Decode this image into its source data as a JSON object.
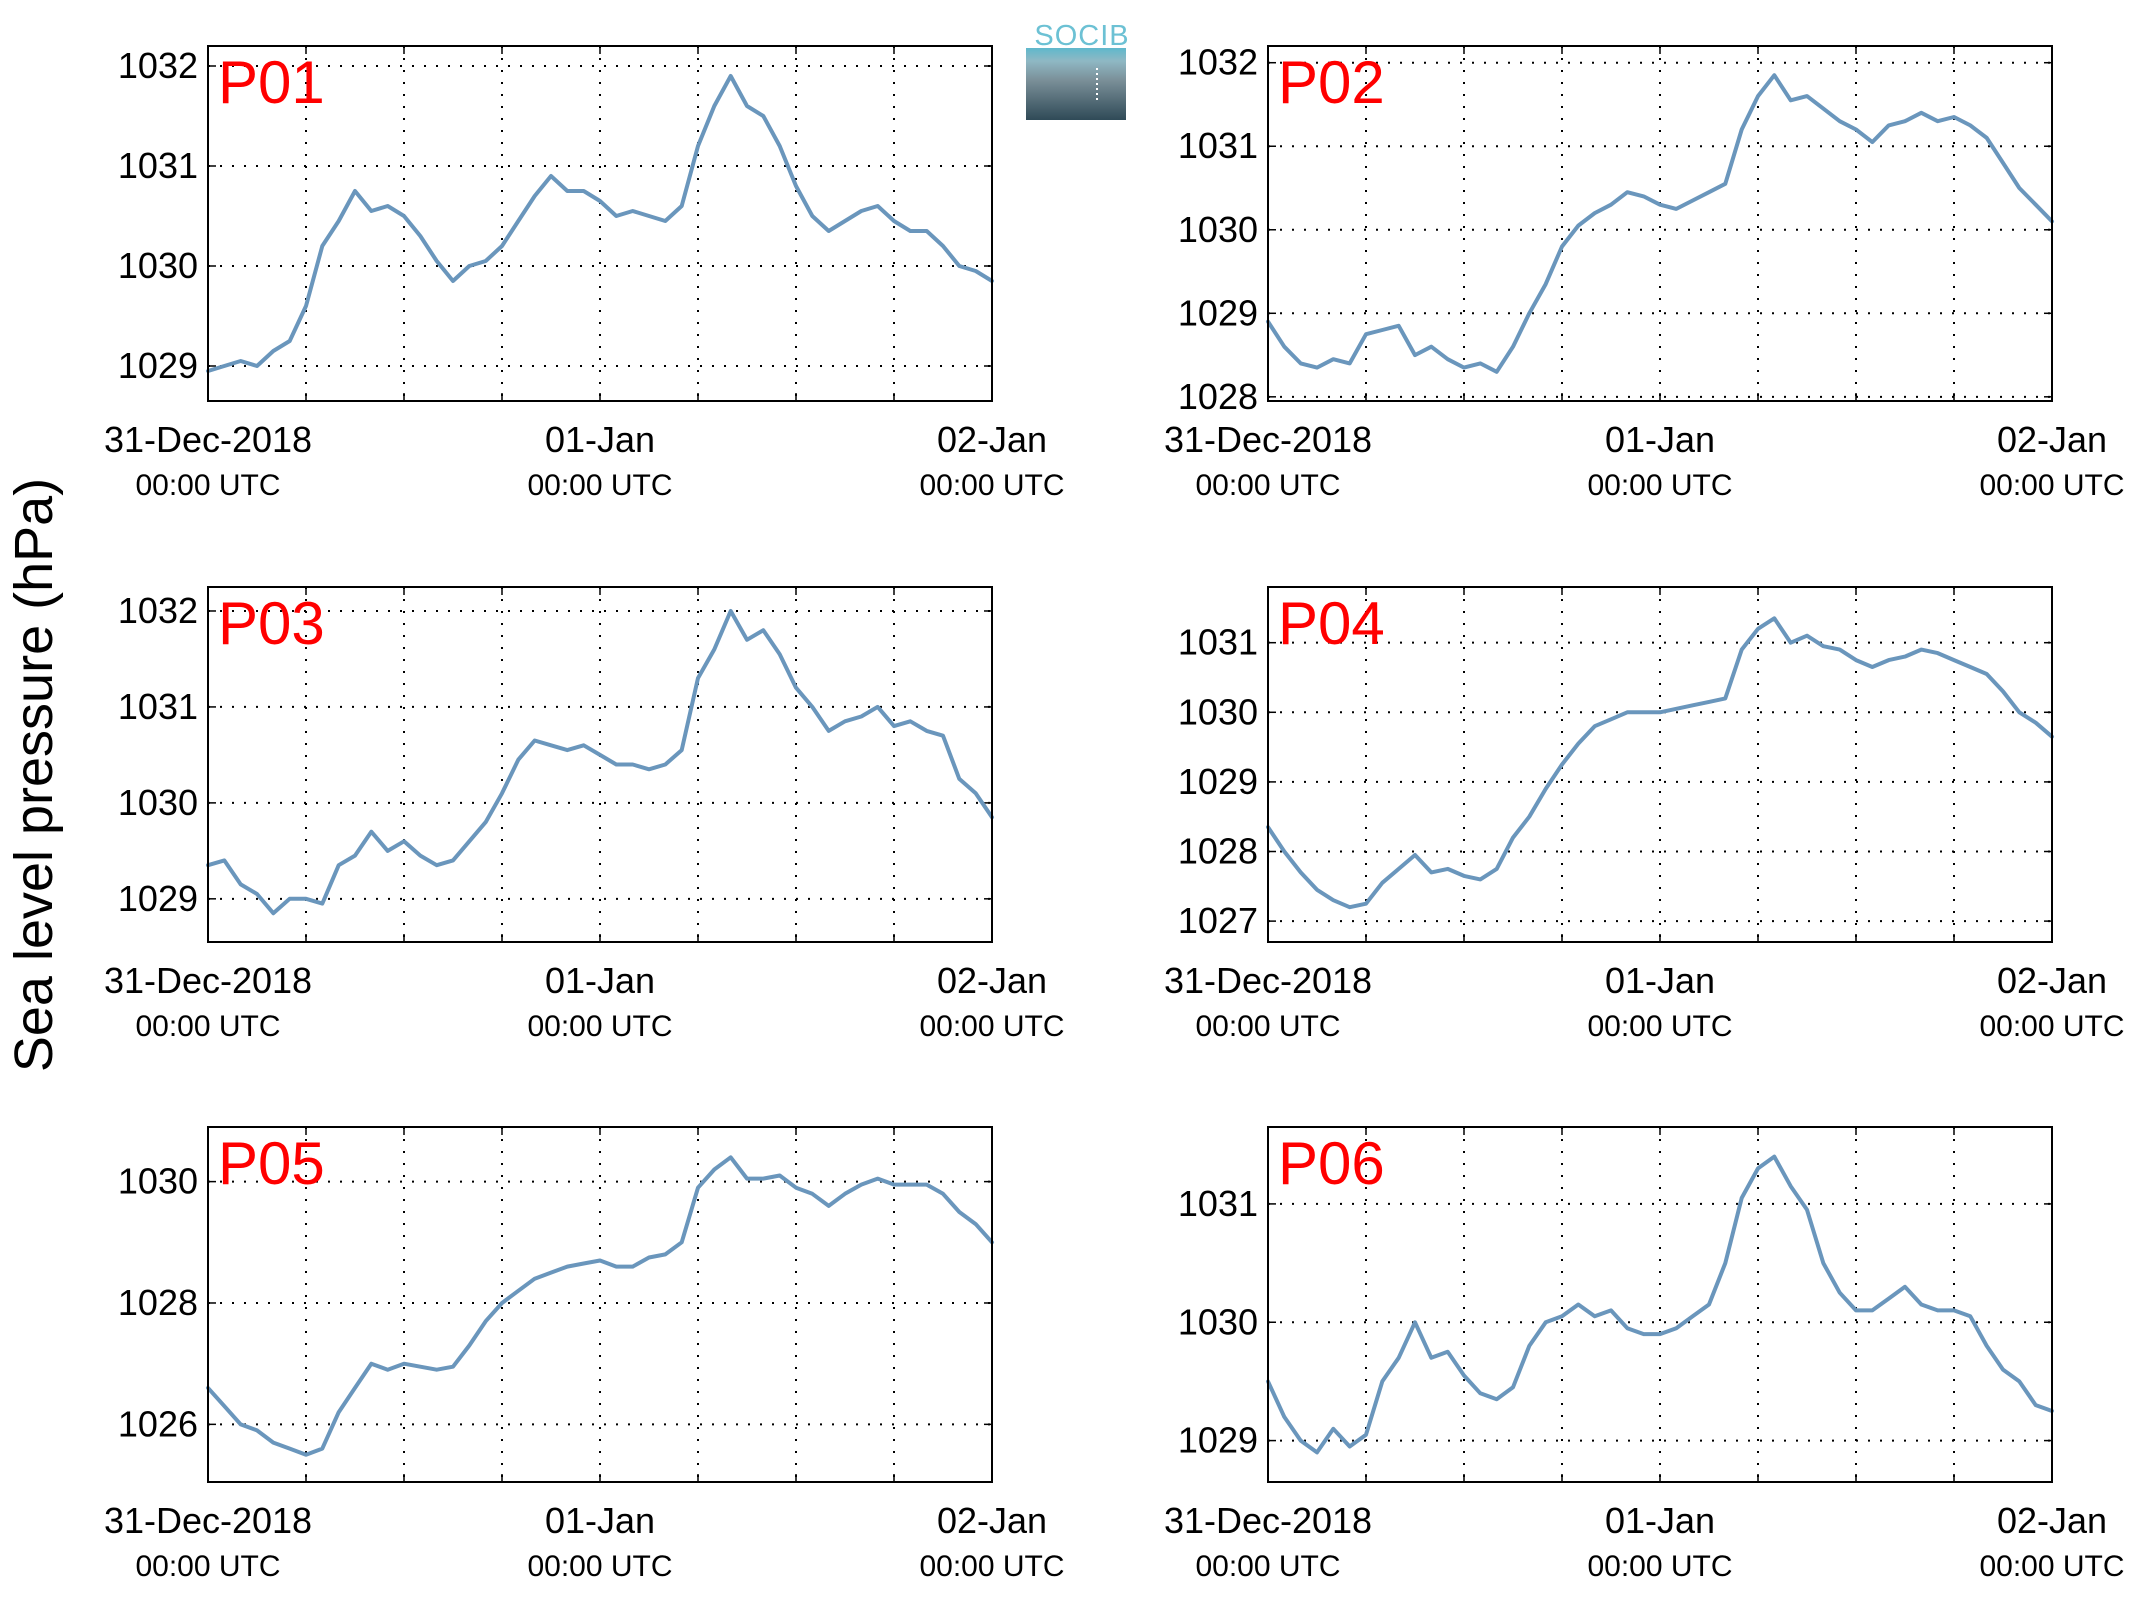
{
  "ylabel": "Sea level pressure (hPa)",
  "logo": {
    "text": "SOCIB",
    "color": "#6cc1d4",
    "top_color": "#5fb8cc",
    "bottom_color": "#2f4a57"
  },
  "colors": {
    "line": "#6a96bc",
    "label": "#ff0000",
    "grid": "#000000"
  },
  "x_axis": {
    "domain": [
      "2018-12-31 00:00 UTC",
      "2019-01-02 00:00 UTC"
    ],
    "tick_labels": [
      {
        "date": "31-Dec-2018",
        "time": "00:00 UTC"
      },
      {
        "date": "01-Jan",
        "time": "00:00 UTC"
      },
      {
        "date": "02-Jan",
        "time": "00:00 UTC"
      }
    ]
  },
  "chart_data": [
    {
      "type": "line",
      "label": "P01",
      "ylim": [
        1028.65,
        1032.2
      ],
      "yticks": [
        1029,
        1030,
        1031,
        1032
      ],
      "x": [
        "2018-12-31 00:00",
        "2018-12-31 01:00",
        "2018-12-31 02:00",
        "2018-12-31 03:00",
        "2018-12-31 04:00",
        "2018-12-31 05:00",
        "2018-12-31 06:00",
        "2018-12-31 07:00",
        "2018-12-31 08:00",
        "2018-12-31 09:00",
        "2018-12-31 10:00",
        "2018-12-31 11:00",
        "2018-12-31 12:00",
        "2018-12-31 13:00",
        "2018-12-31 14:00",
        "2018-12-31 15:00",
        "2018-12-31 16:00",
        "2018-12-31 17:00",
        "2018-12-31 18:00",
        "2018-12-31 19:00",
        "2018-12-31 20:00",
        "2018-12-31 21:00",
        "2018-12-31 22:00",
        "2018-12-31 23:00",
        "2019-01-01 00:00",
        "2019-01-01 01:00",
        "2019-01-01 02:00",
        "2019-01-01 03:00",
        "2019-01-01 04:00",
        "2019-01-01 05:00",
        "2019-01-01 06:00",
        "2019-01-01 07:00",
        "2019-01-01 08:00",
        "2019-01-01 09:00",
        "2019-01-01 10:00",
        "2019-01-01 11:00",
        "2019-01-01 12:00",
        "2019-01-01 13:00",
        "2019-01-01 14:00",
        "2019-01-01 15:00",
        "2019-01-01 16:00",
        "2019-01-01 17:00",
        "2019-01-01 18:00",
        "2019-01-01 19:00",
        "2019-01-01 20:00",
        "2019-01-01 21:00",
        "2019-01-01 22:00",
        "2019-01-01 23:00",
        "2019-01-02 00:00"
      ],
      "values": [
        1028.95,
        1029.0,
        1029.05,
        1029.0,
        1029.15,
        1029.25,
        1029.6,
        1030.2,
        1030.45,
        1030.75,
        1030.55,
        1030.6,
        1030.5,
        1030.3,
        1030.05,
        1029.85,
        1030.0,
        1030.05,
        1030.2,
        1030.45,
        1030.7,
        1030.9,
        1030.75,
        1030.75,
        1030.65,
        1030.5,
        1030.55,
        1030.5,
        1030.45,
        1030.6,
        1031.2,
        1031.6,
        1031.9,
        1031.6,
        1031.5,
        1031.2,
        1030.8,
        1030.5,
        1030.35,
        1030.45,
        1030.55,
        1030.6,
        1030.45,
        1030.35,
        1030.35,
        1030.2,
        1030.0,
        1029.95,
        1029.85
      ]
    },
    {
      "type": "line",
      "label": "P02",
      "ylim": [
        1027.95,
        1032.2
      ],
      "yticks": [
        1028,
        1029,
        1030,
        1031,
        1032
      ],
      "x": [
        "2018-12-31 00:00",
        "2018-12-31 01:00",
        "2018-12-31 02:00",
        "2018-12-31 03:00",
        "2018-12-31 04:00",
        "2018-12-31 05:00",
        "2018-12-31 06:00",
        "2018-12-31 07:00",
        "2018-12-31 08:00",
        "2018-12-31 09:00",
        "2018-12-31 10:00",
        "2018-12-31 11:00",
        "2018-12-31 12:00",
        "2018-12-31 13:00",
        "2018-12-31 14:00",
        "2018-12-31 15:00",
        "2018-12-31 16:00",
        "2018-12-31 17:00",
        "2018-12-31 18:00",
        "2018-12-31 19:00",
        "2018-12-31 20:00",
        "2018-12-31 21:00",
        "2018-12-31 22:00",
        "2018-12-31 23:00",
        "2019-01-01 00:00",
        "2019-01-01 01:00",
        "2019-01-01 02:00",
        "2019-01-01 03:00",
        "2019-01-01 04:00",
        "2019-01-01 05:00",
        "2019-01-01 06:00",
        "2019-01-01 07:00",
        "2019-01-01 08:00",
        "2019-01-01 09:00",
        "2019-01-01 10:00",
        "2019-01-01 11:00",
        "2019-01-01 12:00",
        "2019-01-01 13:00",
        "2019-01-01 14:00",
        "2019-01-01 15:00",
        "2019-01-01 16:00",
        "2019-01-01 17:00",
        "2019-01-01 18:00",
        "2019-01-01 19:00",
        "2019-01-01 20:00",
        "2019-01-01 21:00",
        "2019-01-01 22:00",
        "2019-01-01 23:00",
        "2019-01-02 00:00"
      ],
      "values": [
        1028.9,
        1028.6,
        1028.4,
        1028.35,
        1028.45,
        1028.4,
        1028.75,
        1028.8,
        1028.85,
        1028.5,
        1028.6,
        1028.45,
        1028.35,
        1028.4,
        1028.3,
        1028.6,
        1029.0,
        1029.35,
        1029.8,
        1030.05,
        1030.2,
        1030.3,
        1030.45,
        1030.4,
        1030.3,
        1030.25,
        1030.35,
        1030.45,
        1030.55,
        1031.2,
        1031.6,
        1031.85,
        1031.55,
        1031.6,
        1031.45,
        1031.3,
        1031.2,
        1031.05,
        1031.25,
        1031.3,
        1031.4,
        1031.3,
        1031.35,
        1031.25,
        1031.1,
        1030.8,
        1030.5,
        1030.3,
        1030.1
      ]
    },
    {
      "type": "line",
      "label": "P03",
      "ylim": [
        1028.55,
        1032.25
      ],
      "yticks": [
        1029,
        1030,
        1031,
        1032
      ],
      "x": [
        "2018-12-31 00:00",
        "2018-12-31 01:00",
        "2018-12-31 02:00",
        "2018-12-31 03:00",
        "2018-12-31 04:00",
        "2018-12-31 05:00",
        "2018-12-31 06:00",
        "2018-12-31 07:00",
        "2018-12-31 08:00",
        "2018-12-31 09:00",
        "2018-12-31 10:00",
        "2018-12-31 11:00",
        "2018-12-31 12:00",
        "2018-12-31 13:00",
        "2018-12-31 14:00",
        "2018-12-31 15:00",
        "2018-12-31 16:00",
        "2018-12-31 17:00",
        "2018-12-31 18:00",
        "2018-12-31 19:00",
        "2018-12-31 20:00",
        "2018-12-31 21:00",
        "2018-12-31 22:00",
        "2018-12-31 23:00",
        "2019-01-01 00:00",
        "2019-01-01 01:00",
        "2019-01-01 02:00",
        "2019-01-01 03:00",
        "2019-01-01 04:00",
        "2019-01-01 05:00",
        "2019-01-01 06:00",
        "2019-01-01 07:00",
        "2019-01-01 08:00",
        "2019-01-01 09:00",
        "2019-01-01 10:00",
        "2019-01-01 11:00",
        "2019-01-01 12:00",
        "2019-01-01 13:00",
        "2019-01-01 14:00",
        "2019-01-01 15:00",
        "2019-01-01 16:00",
        "2019-01-01 17:00",
        "2019-01-01 18:00",
        "2019-01-01 19:00",
        "2019-01-01 20:00",
        "2019-01-01 21:00",
        "2019-01-01 22:00",
        "2019-01-01 23:00",
        "2019-01-02 00:00"
      ],
      "values": [
        1029.35,
        1029.4,
        1029.15,
        1029.05,
        1028.85,
        1029.0,
        1029.0,
        1028.95,
        1029.35,
        1029.45,
        1029.7,
        1029.5,
        1029.6,
        1029.45,
        1029.35,
        1029.4,
        1029.6,
        1029.8,
        1030.1,
        1030.45,
        1030.65,
        1030.6,
        1030.55,
        1030.6,
        1030.5,
        1030.4,
        1030.4,
        1030.35,
        1030.4,
        1030.55,
        1031.3,
        1031.6,
        1032.0,
        1031.7,
        1031.8,
        1031.55,
        1031.2,
        1031.0,
        1030.75,
        1030.85,
        1030.9,
        1031.0,
        1030.8,
        1030.85,
        1030.75,
        1030.7,
        1030.25,
        1030.1,
        1029.85
      ]
    },
    {
      "type": "line",
      "label": "P04",
      "ylim": [
        1026.7,
        1031.8
      ],
      "yticks": [
        1027,
        1028,
        1029,
        1030,
        1031
      ],
      "x": [
        "2018-12-31 00:00",
        "2018-12-31 01:00",
        "2018-12-31 02:00",
        "2018-12-31 03:00",
        "2018-12-31 04:00",
        "2018-12-31 05:00",
        "2018-12-31 06:00",
        "2018-12-31 07:00",
        "2018-12-31 08:00",
        "2018-12-31 09:00",
        "2018-12-31 10:00",
        "2018-12-31 11:00",
        "2018-12-31 12:00",
        "2018-12-31 13:00",
        "2018-12-31 14:00",
        "2018-12-31 15:00",
        "2018-12-31 16:00",
        "2018-12-31 17:00",
        "2018-12-31 18:00",
        "2018-12-31 19:00",
        "2018-12-31 20:00",
        "2018-12-31 21:00",
        "2018-12-31 22:00",
        "2018-12-31 23:00",
        "2019-01-01 00:00",
        "2019-01-01 01:00",
        "2019-01-01 02:00",
        "2019-01-01 03:00",
        "2019-01-01 04:00",
        "2019-01-01 05:00",
        "2019-01-01 06:00",
        "2019-01-01 07:00",
        "2019-01-01 08:00",
        "2019-01-01 09:00",
        "2019-01-01 10:00",
        "2019-01-01 11:00",
        "2019-01-01 12:00",
        "2019-01-01 13:00",
        "2019-01-01 14:00",
        "2019-01-01 15:00",
        "2019-01-01 16:00",
        "2019-01-01 17:00",
        "2019-01-01 18:00",
        "2019-01-01 19:00",
        "2019-01-01 20:00",
        "2019-01-01 21:00",
        "2019-01-01 22:00",
        "2019-01-01 23:00",
        "2019-01-02 00:00"
      ],
      "values": [
        1028.35,
        1028.0,
        1027.7,
        1027.45,
        1027.3,
        1027.2,
        1027.25,
        1027.55,
        1027.75,
        1027.95,
        1027.7,
        1027.75,
        1027.65,
        1027.6,
        1027.75,
        1028.2,
        1028.5,
        1028.9,
        1029.25,
        1029.55,
        1029.8,
        1029.9,
        1030.0,
        1030.0,
        1030.0,
        1030.05,
        1030.1,
        1030.15,
        1030.2,
        1030.9,
        1031.2,
        1031.35,
        1031.0,
        1031.1,
        1030.95,
        1030.9,
        1030.75,
        1030.65,
        1030.75,
        1030.8,
        1030.9,
        1030.85,
        1030.75,
        1030.65,
        1030.55,
        1030.3,
        1030.0,
        1029.85,
        1029.65
      ]
    },
    {
      "type": "line",
      "label": "P05",
      "ylim": [
        1025.05,
        1030.9
      ],
      "yticks": [
        1026,
        1028,
        1030
      ],
      "x": [
        "2018-12-31 00:00",
        "2018-12-31 01:00",
        "2018-12-31 02:00",
        "2018-12-31 03:00",
        "2018-12-31 04:00",
        "2018-12-31 05:00",
        "2018-12-31 06:00",
        "2018-12-31 07:00",
        "2018-12-31 08:00",
        "2018-12-31 09:00",
        "2018-12-31 10:00",
        "2018-12-31 11:00",
        "2018-12-31 12:00",
        "2018-12-31 13:00",
        "2018-12-31 14:00",
        "2018-12-31 15:00",
        "2018-12-31 16:00",
        "2018-12-31 17:00",
        "2018-12-31 18:00",
        "2018-12-31 19:00",
        "2018-12-31 20:00",
        "2018-12-31 21:00",
        "2018-12-31 22:00",
        "2018-12-31 23:00",
        "2019-01-01 00:00",
        "2019-01-01 01:00",
        "2019-01-01 02:00",
        "2019-01-01 03:00",
        "2019-01-01 04:00",
        "2019-01-01 05:00",
        "2019-01-01 06:00",
        "2019-01-01 07:00",
        "2019-01-01 08:00",
        "2019-01-01 09:00",
        "2019-01-01 10:00",
        "2019-01-01 11:00",
        "2019-01-01 12:00",
        "2019-01-01 13:00",
        "2019-01-01 14:00",
        "2019-01-01 15:00",
        "2019-01-01 16:00",
        "2019-01-01 17:00",
        "2019-01-01 18:00",
        "2019-01-01 19:00",
        "2019-01-01 20:00",
        "2019-01-01 21:00",
        "2019-01-01 22:00",
        "2019-01-01 23:00",
        "2019-01-02 00:00"
      ],
      "values": [
        1026.6,
        1026.3,
        1026.0,
        1025.9,
        1025.7,
        1025.6,
        1025.5,
        1025.6,
        1026.2,
        1026.6,
        1027.0,
        1026.9,
        1027.0,
        1026.95,
        1026.9,
        1026.95,
        1027.3,
        1027.7,
        1028.0,
        1028.2,
        1028.4,
        1028.5,
        1028.6,
        1028.65,
        1028.7,
        1028.6,
        1028.6,
        1028.75,
        1028.8,
        1029.0,
        1029.9,
        1030.2,
        1030.4,
        1030.05,
        1030.05,
        1030.1,
        1029.9,
        1029.8,
        1029.6,
        1029.8,
        1029.95,
        1030.05,
        1029.95,
        1029.95,
        1029.95,
        1029.8,
        1029.5,
        1029.3,
        1029.0
      ]
    },
    {
      "type": "line",
      "label": "P06",
      "ylim": [
        1028.65,
        1031.65
      ],
      "yticks": [
        1029,
        1030,
        1031
      ],
      "x": [
        "2018-12-31 00:00",
        "2018-12-31 01:00",
        "2018-12-31 02:00",
        "2018-12-31 03:00",
        "2018-12-31 04:00",
        "2018-12-31 05:00",
        "2018-12-31 06:00",
        "2018-12-31 07:00",
        "2018-12-31 08:00",
        "2018-12-31 09:00",
        "2018-12-31 10:00",
        "2018-12-31 11:00",
        "2018-12-31 12:00",
        "2018-12-31 13:00",
        "2018-12-31 14:00",
        "2018-12-31 15:00",
        "2018-12-31 16:00",
        "2018-12-31 17:00",
        "2018-12-31 18:00",
        "2018-12-31 19:00",
        "2018-12-31 20:00",
        "2018-12-31 21:00",
        "2018-12-31 22:00",
        "2018-12-31 23:00",
        "2019-01-01 00:00",
        "2019-01-01 01:00",
        "2019-01-01 02:00",
        "2019-01-01 03:00",
        "2019-01-01 04:00",
        "2019-01-01 05:00",
        "2019-01-01 06:00",
        "2019-01-01 07:00",
        "2019-01-01 08:00",
        "2019-01-01 09:00",
        "2019-01-01 10:00",
        "2019-01-01 11:00",
        "2019-01-01 12:00",
        "2019-01-01 13:00",
        "2019-01-01 14:00",
        "2019-01-01 15:00",
        "2019-01-01 16:00",
        "2019-01-01 17:00",
        "2019-01-01 18:00",
        "2019-01-01 19:00",
        "2019-01-01 20:00",
        "2019-01-01 21:00",
        "2019-01-01 22:00",
        "2019-01-01 23:00",
        "2019-01-02 00:00"
      ],
      "values": [
        1029.5,
        1029.2,
        1029.0,
        1028.9,
        1029.1,
        1028.95,
        1029.05,
        1029.5,
        1029.7,
        1030.0,
        1029.7,
        1029.75,
        1029.55,
        1029.4,
        1029.35,
        1029.45,
        1029.8,
        1030.0,
        1030.05,
        1030.15,
        1030.05,
        1030.1,
        1029.95,
        1029.9,
        1029.9,
        1029.95,
        1030.05,
        1030.15,
        1030.5,
        1031.05,
        1031.3,
        1031.4,
        1031.15,
        1030.95,
        1030.5,
        1030.25,
        1030.1,
        1030.1,
        1030.2,
        1030.3,
        1030.15,
        1030.1,
        1030.1,
        1030.05,
        1029.8,
        1029.6,
        1029.5,
        1029.3,
        1029.25
      ]
    }
  ]
}
